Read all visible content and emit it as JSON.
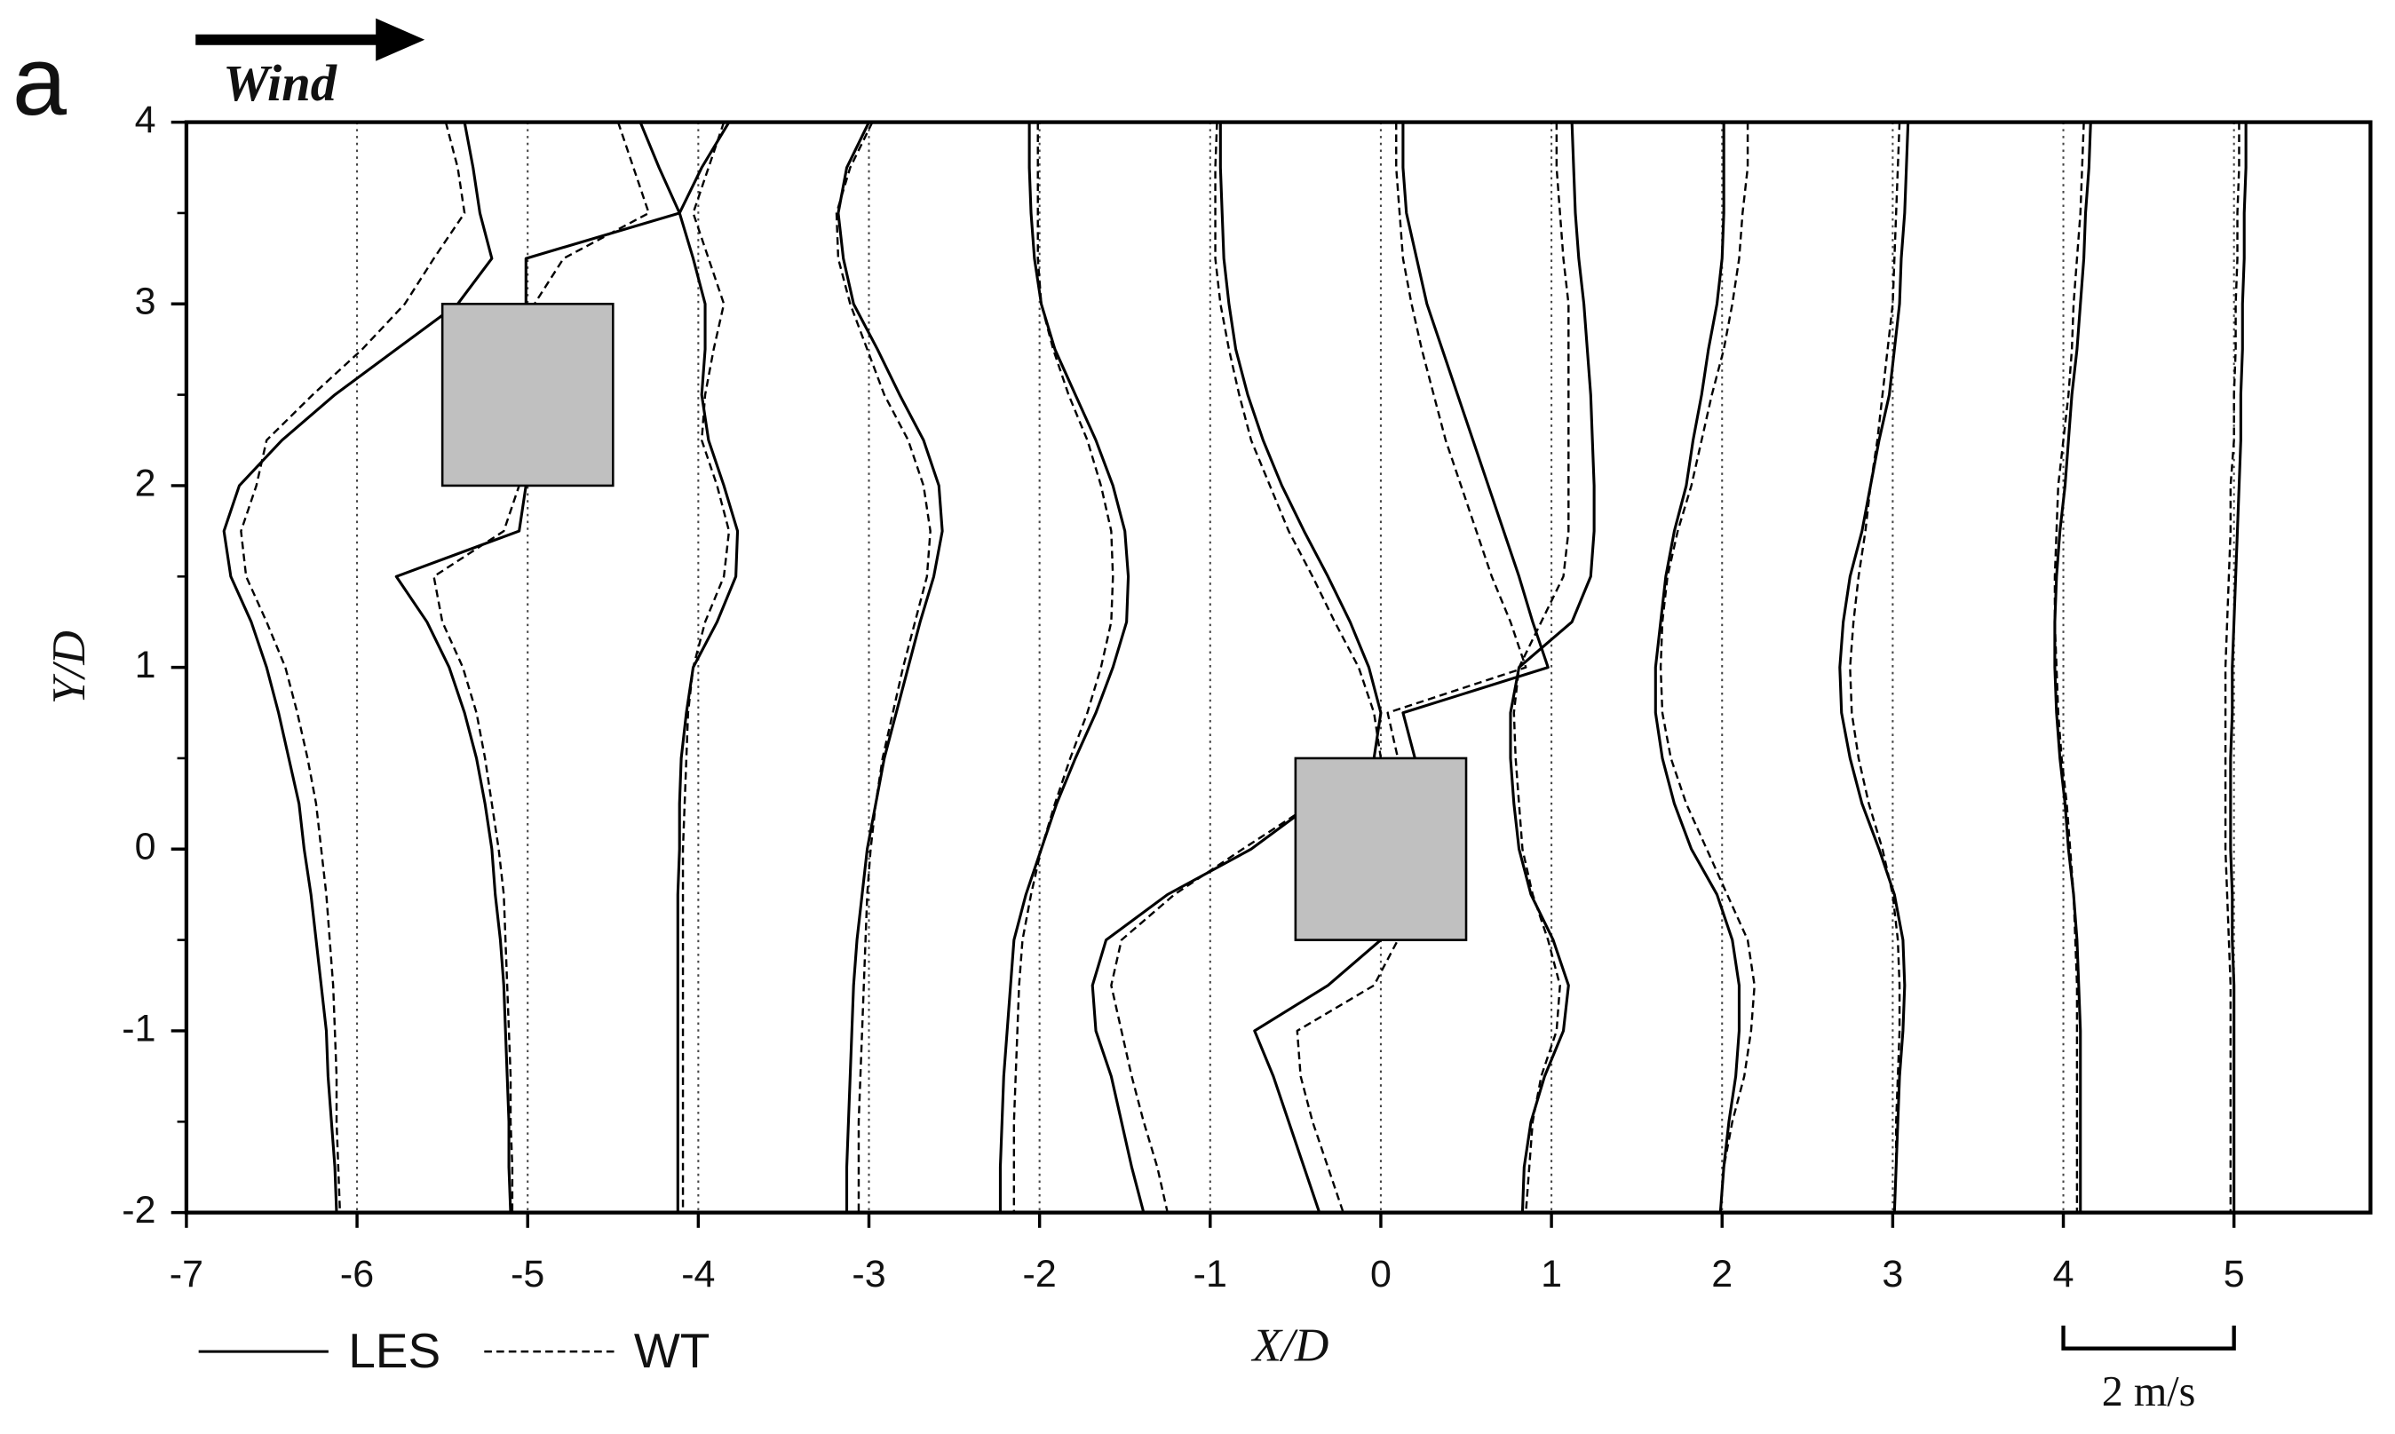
{
  "chart_data": {
    "type": "line",
    "panel_label": "a",
    "wind_label": "Wind",
    "xlabel": "X/D",
    "ylabel": "Y/D",
    "xlim": [
      -7,
      5.8
    ],
    "ylim": [
      -2,
      4
    ],
    "xticks": [
      -7,
      -6,
      -5,
      -4,
      -3,
      -2,
      -1,
      0,
      1,
      2,
      3,
      4,
      5
    ],
    "yticks": [
      -2,
      -1,
      0,
      1,
      2,
      3,
      4
    ],
    "grid": "x",
    "scale_bar": {
      "label": "2 m/s",
      "x": [
        4,
        5
      ]
    },
    "buildings": [
      {
        "x": [
          -5.5,
          -4.5
        ],
        "y": [
          2,
          3
        ]
      },
      {
        "x": [
          -0.5,
          0.5
        ],
        "y": [
          -0.5,
          0.5
        ]
      }
    ],
    "y": [
      4,
      3.75,
      3.5,
      3.25,
      3,
      2.75,
      2.5,
      2.25,
      2,
      1.75,
      1.5,
      1.25,
      1,
      0.75,
      0.5,
      0.25,
      0,
      -0.25,
      -0.5,
      -0.75,
      -1,
      -1.25,
      -1.5,
      -1.75,
      -2
    ],
    "series": [
      {
        "name": "LES",
        "color": "#000000",
        "dash": "solid",
        "profiles": [
          [
            -5.37,
            -5.32,
            -5.28,
            -5.21,
            -5.41,
            -5.77,
            -6.13,
            -6.44,
            -6.69,
            -6.78,
            -6.74,
            -6.62,
            -6.53,
            -6.46,
            -6.4,
            -6.34,
            -6.31,
            -6.27,
            -6.24,
            -6.21,
            -6.18,
            -6.17,
            -6.15,
            -6.13,
            -6.12
          ],
          [
            -4.34,
            -4.23,
            -4.11,
            -5.01,
            -5.01,
            -5.0,
            -5.0,
            -5.0,
            -5.01,
            -5.05,
            -5.77,
            -5.59,
            -5.46,
            -5.37,
            -5.3,
            -5.25,
            -5.21,
            -5.19,
            -5.16,
            -5.14,
            -5.13,
            -5.12,
            -5.11,
            -5.11,
            -5.1
          ],
          [
            -3.82,
            -3.98,
            -4.11,
            -4.03,
            -3.96,
            -3.96,
            -3.98,
            -3.94,
            -3.85,
            -3.77,
            -3.78,
            -3.89,
            -4.03,
            -4.07,
            -4.1,
            -4.11,
            -4.11,
            -4.12,
            -4.12,
            -4.12,
            -4.12,
            -4.12,
            -4.12,
            -4.12,
            -4.12
          ],
          [
            -3.0,
            -3.13,
            -3.18,
            -3.15,
            -3.09,
            -2.95,
            -2.82,
            -2.68,
            -2.59,
            -2.57,
            -2.62,
            -2.7,
            -2.77,
            -2.84,
            -2.91,
            -2.96,
            -3.01,
            -3.04,
            -3.07,
            -3.09,
            -3.1,
            -3.11,
            -3.12,
            -3.13,
            -3.13
          ],
          [
            -2.06,
            -2.06,
            -2.05,
            -2.03,
            -1.99,
            -1.91,
            -1.79,
            -1.67,
            -1.57,
            -1.5,
            -1.48,
            -1.49,
            -1.57,
            -1.67,
            -1.79,
            -1.9,
            -1.99,
            -2.08,
            -2.15,
            -2.17,
            -2.19,
            -2.21,
            -2.22,
            -2.23,
            -2.23
          ],
          [
            -0.94,
            -0.94,
            -0.93,
            -0.92,
            -0.89,
            -0.85,
            -0.78,
            -0.69,
            -0.58,
            -0.45,
            -0.31,
            -0.18,
            -0.07,
            0.0,
            -0.04,
            -0.4,
            -0.76,
            -1.25,
            -1.61,
            -1.69,
            -1.67,
            -1.58,
            -1.52,
            -1.46,
            -1.39
          ],
          [
            0.13,
            0.13,
            0.15,
            0.21,
            0.27,
            0.36,
            0.45,
            0.54,
            0.63,
            0.72,
            0.81,
            0.89,
            0.98,
            0.13,
            0.2,
            0.1,
            0.0,
            0.0,
            0.0,
            -0.31,
            -0.74,
            -0.63,
            -0.54,
            -0.45,
            -0.36
          ],
          [
            1.12,
            1.13,
            1.14,
            1.16,
            1.19,
            1.21,
            1.23,
            1.24,
            1.25,
            1.25,
            1.23,
            1.12,
            0.81,
            0.76,
            0.76,
            0.78,
            0.81,
            0.88,
            1.01,
            1.1,
            1.07,
            0.96,
            0.88,
            0.84,
            0.83
          ],
          [
            2.01,
            2.01,
            2.01,
            2.0,
            1.97,
            1.92,
            1.88,
            1.83,
            1.79,
            1.72,
            1.67,
            1.64,
            1.61,
            1.61,
            1.65,
            1.72,
            1.82,
            1.97,
            2.06,
            2.1,
            2.1,
            2.08,
            2.04,
            2.01,
            1.99
          ],
          [
            3.09,
            3.08,
            3.07,
            3.05,
            3.04,
            3.01,
            2.98,
            2.92,
            2.87,
            2.82,
            2.75,
            2.71,
            2.69,
            2.7,
            2.75,
            2.82,
            2.92,
            3.01,
            3.06,
            3.07,
            3.06,
            3.04,
            3.03,
            3.02,
            3.01
          ],
          [
            4.16,
            4.15,
            4.13,
            4.12,
            4.1,
            4.08,
            4.05,
            4.03,
            4.01,
            3.98,
            3.96,
            3.95,
            3.95,
            3.96,
            3.98,
            4.01,
            4.03,
            4.06,
            4.08,
            4.09,
            4.1,
            4.1,
            4.1,
            4.1,
            4.1
          ],
          [
            5.07,
            5.07,
            5.06,
            5.06,
            5.05,
            5.05,
            5.04,
            5.04,
            5.03,
            5.02,
            5.01,
            5.0,
            4.99,
            4.99,
            4.98,
            4.98,
            4.98,
            4.99,
            4.99,
            5.0,
            5.0,
            5.0,
            5.0,
            5.0,
            5.0
          ]
        ]
      },
      {
        "name": "WT",
        "color": "#000000",
        "dash": "dashed",
        "profiles": [
          [
            -5.48,
            -5.41,
            -5.37,
            -5.55,
            -5.72,
            -5.97,
            -6.26,
            -6.53,
            -6.59,
            -6.68,
            -6.65,
            -6.53,
            -6.42,
            -6.35,
            -6.29,
            -6.24,
            -6.21,
            -6.18,
            -6.16,
            -6.14,
            -6.13,
            -6.12,
            -6.12,
            -6.11,
            -6.1
          ],
          [
            -4.47,
            -4.38,
            -4.29,
            -4.79,
            -4.96,
            -5.0,
            -5.0,
            -5.0,
            -5.05,
            -5.14,
            -5.55,
            -5.5,
            -5.38,
            -5.3,
            -5.25,
            -5.21,
            -5.17,
            -5.14,
            -5.13,
            -5.12,
            -5.11,
            -5.1,
            -5.1,
            -5.09,
            -5.09
          ],
          [
            -3.85,
            -3.94,
            -4.03,
            -3.94,
            -3.85,
            -3.91,
            -3.96,
            -3.98,
            -3.89,
            -3.82,
            -3.85,
            -3.96,
            -4.03,
            -4.06,
            -4.07,
            -4.08,
            -4.09,
            -4.09,
            -4.09,
            -4.09,
            -4.09,
            -4.09,
            -4.09,
            -4.09,
            -4.09
          ],
          [
            -2.98,
            -3.11,
            -3.19,
            -3.18,
            -3.11,
            -3.01,
            -2.91,
            -2.77,
            -2.68,
            -2.64,
            -2.66,
            -2.73,
            -2.8,
            -2.86,
            -2.92,
            -2.96,
            -2.99,
            -3.01,
            -3.02,
            -3.03,
            -3.04,
            -3.05,
            -3.06,
            -3.06,
            -3.06
          ],
          [
            -2.01,
            -2.01,
            -2.01,
            -2.01,
            -1.99,
            -1.92,
            -1.83,
            -1.72,
            -1.64,
            -1.58,
            -1.57,
            -1.58,
            -1.64,
            -1.72,
            -1.82,
            -1.91,
            -1.99,
            -2.05,
            -2.1,
            -2.12,
            -2.13,
            -2.14,
            -2.15,
            -2.15,
            -2.15
          ],
          [
            -0.96,
            -0.97,
            -0.97,
            -0.97,
            -0.94,
            -0.89,
            -0.83,
            -0.76,
            -0.65,
            -0.54,
            -0.4,
            -0.27,
            -0.13,
            -0.04,
            0.0,
            -0.4,
            -0.81,
            -1.21,
            -1.52,
            -1.58,
            -1.52,
            -1.46,
            -1.39,
            -1.31,
            -1.25
          ],
          [
            0.09,
            0.09,
            0.11,
            0.13,
            0.18,
            0.24,
            0.31,
            0.38,
            0.47,
            0.56,
            0.65,
            0.76,
            0.85,
            0.04,
            0.1,
            0.1,
            0.1,
            0.1,
            0.1,
            -0.04,
            -0.49,
            -0.47,
            -0.4,
            -0.31,
            -0.22
          ],
          [
            1.03,
            1.03,
            1.05,
            1.07,
            1.1,
            1.1,
            1.1,
            1.1,
            1.1,
            1.1,
            1.07,
            0.94,
            0.81,
            0.78,
            0.79,
            0.81,
            0.83,
            0.89,
            0.98,
            1.05,
            1.03,
            0.94,
            0.89,
            0.87,
            0.85
          ],
          [
            2.15,
            2.15,
            2.12,
            2.1,
            2.06,
            2.01,
            1.94,
            1.88,
            1.82,
            1.74,
            1.68,
            1.65,
            1.64,
            1.65,
            1.7,
            1.79,
            1.91,
            2.03,
            2.15,
            2.19,
            2.17,
            2.13,
            2.06,
            2.01,
            1.99
          ],
          [
            3.04,
            3.03,
            3.02,
            3.01,
            3.0,
            2.97,
            2.94,
            2.91,
            2.87,
            2.84,
            2.8,
            2.77,
            2.75,
            2.76,
            2.8,
            2.86,
            2.94,
            3.0,
            3.03,
            3.04,
            3.04,
            3.03,
            3.02,
            3.02,
            3.01
          ],
          [
            4.12,
            4.11,
            4.1,
            4.08,
            4.06,
            4.05,
            4.03,
            4.0,
            3.97,
            3.96,
            3.95,
            3.95,
            3.96,
            3.97,
            3.99,
            4.02,
            4.04,
            4.06,
            4.07,
            4.08,
            4.08,
            4.08,
            4.08,
            4.08,
            4.08
          ],
          [
            5.03,
            5.03,
            5.02,
            5.02,
            5.01,
            5.01,
            5.0,
            5.0,
            4.98,
            4.98,
            4.97,
            4.96,
            4.95,
            4.95,
            4.95,
            4.95,
            4.95,
            4.96,
            4.97,
            4.98,
            4.98,
            4.98,
            4.98,
            4.98,
            4.98
          ]
        ]
      }
    ]
  }
}
